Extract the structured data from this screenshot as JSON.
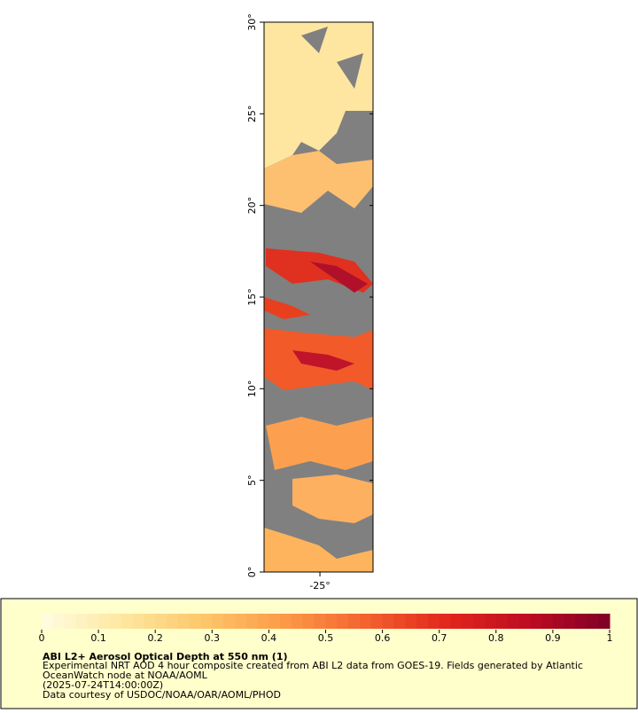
{
  "map": {
    "xlim": [
      -28.05,
      -22.1
    ],
    "ylim": [
      0,
      30
    ],
    "xticks": [
      {
        "value": -25,
        "label": "-25°"
      }
    ],
    "yticks": [
      {
        "value": 0,
        "label": "0°"
      },
      {
        "value": 5,
        "label": "5°"
      },
      {
        "value": 10,
        "label": "10°"
      },
      {
        "value": 15,
        "label": "15°"
      },
      {
        "value": 20,
        "label": "20°"
      },
      {
        "value": 25,
        "label": "25°"
      },
      {
        "value": 30,
        "label": "30°"
      }
    ]
  },
  "colorbar": {
    "range": [
      0,
      1
    ],
    "ticks": [
      0,
      0.1,
      0.2,
      0.3,
      0.4,
      0.5,
      0.6,
      0.7,
      0.8,
      0.9,
      1
    ],
    "colors": [
      "#fffde0",
      "#fee7a0",
      "#fdc66a",
      "#fc9a47",
      "#f3622f",
      "#e2261c",
      "#bd0c22",
      "#800026"
    ]
  },
  "legend": {
    "title": "ABI L2+ Aerosol Optical Depth at 550 nm (1)",
    "lines": [
      "Experimental NRT AOD 4 hour composite created from ABI L2 data from GOES-19. Fields generated by Atlantic",
      "OceanWatch node at NOAA/AOML",
      "(2025-07-24T14:00:00Z)",
      "Data courtesy of USDOC/NOAA/OAR/AOML/PHOD"
    ]
  }
}
